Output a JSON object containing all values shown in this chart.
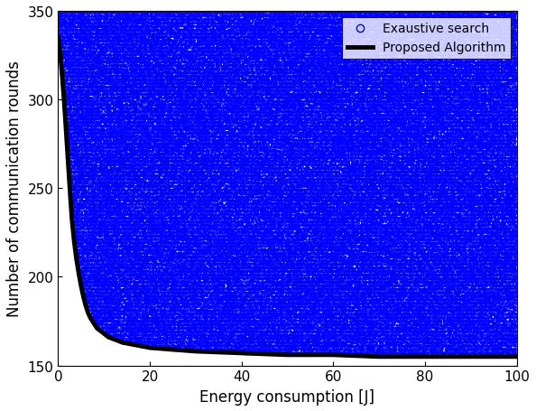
{
  "xlabel": "Energy consumption [J]",
  "ylabel": "Number of communication rounds",
  "xlim": [
    0,
    100
  ],
  "ylim": [
    150,
    350
  ],
  "xticks": [
    0,
    20,
    40,
    60,
    80,
    100
  ],
  "yticks": [
    150,
    200,
    250,
    300,
    350
  ],
  "scatter_color": "#0000FF",
  "curve_color": "#000000",
  "curve_linewidth": 3.5,
  "marker_size": 1.5,
  "legend_labels": [
    "Exaustive search",
    "Proposed Algorithm"
  ],
  "figsize": [
    5.94,
    4.56
  ],
  "dpi": 100,
  "scatter_bands_y": [
    153,
    155,
    157,
    159,
    161,
    163,
    165,
    167,
    169,
    171,
    173,
    175,
    177,
    179,
    181,
    183,
    185,
    187,
    189,
    191,
    193,
    195,
    197,
    199,
    201,
    203,
    205,
    207,
    209,
    211,
    213,
    215,
    217,
    219,
    221,
    223,
    225,
    227,
    229,
    231,
    233,
    235,
    237,
    239,
    241,
    243,
    245,
    247,
    249,
    251,
    253,
    255,
    257,
    259,
    261,
    263,
    265,
    267,
    269,
    271,
    273,
    275,
    277,
    279,
    281,
    283,
    285,
    287,
    289,
    291,
    293,
    295,
    297,
    299,
    301,
    303,
    305,
    307,
    309,
    311,
    313,
    315,
    317,
    319,
    321,
    323,
    325,
    327,
    329,
    331,
    333,
    335,
    337,
    339,
    341,
    343,
    345,
    347,
    349,
    351
  ],
  "pareto_x": [
    0.0,
    0.3,
    0.6,
    0.9,
    1.2,
    1.5,
    1.8,
    2.1,
    2.4,
    2.7,
    3.0,
    3.5,
    4.0,
    4.5,
    5.0,
    5.5,
    6.0,
    6.5,
    7.0,
    7.5,
    8.0,
    8.5,
    9.0,
    9.5,
    10.0,
    11.0,
    12.0,
    14.0,
    16.0,
    18.0,
    20.0,
    25.0,
    30.0,
    40.0,
    50.0,
    60.0,
    70.0,
    80.0,
    90.0,
    100.0
  ],
  "pareto_y": [
    335,
    330,
    322,
    313,
    303,
    292,
    280,
    268,
    256,
    244,
    233,
    220,
    210,
    202,
    195,
    189,
    184,
    180,
    177,
    175,
    173,
    171,
    170,
    169,
    168,
    166,
    165,
    163,
    162,
    161,
    160,
    159,
    158,
    157,
    156,
    156,
    155,
    155,
    155,
    155
  ]
}
